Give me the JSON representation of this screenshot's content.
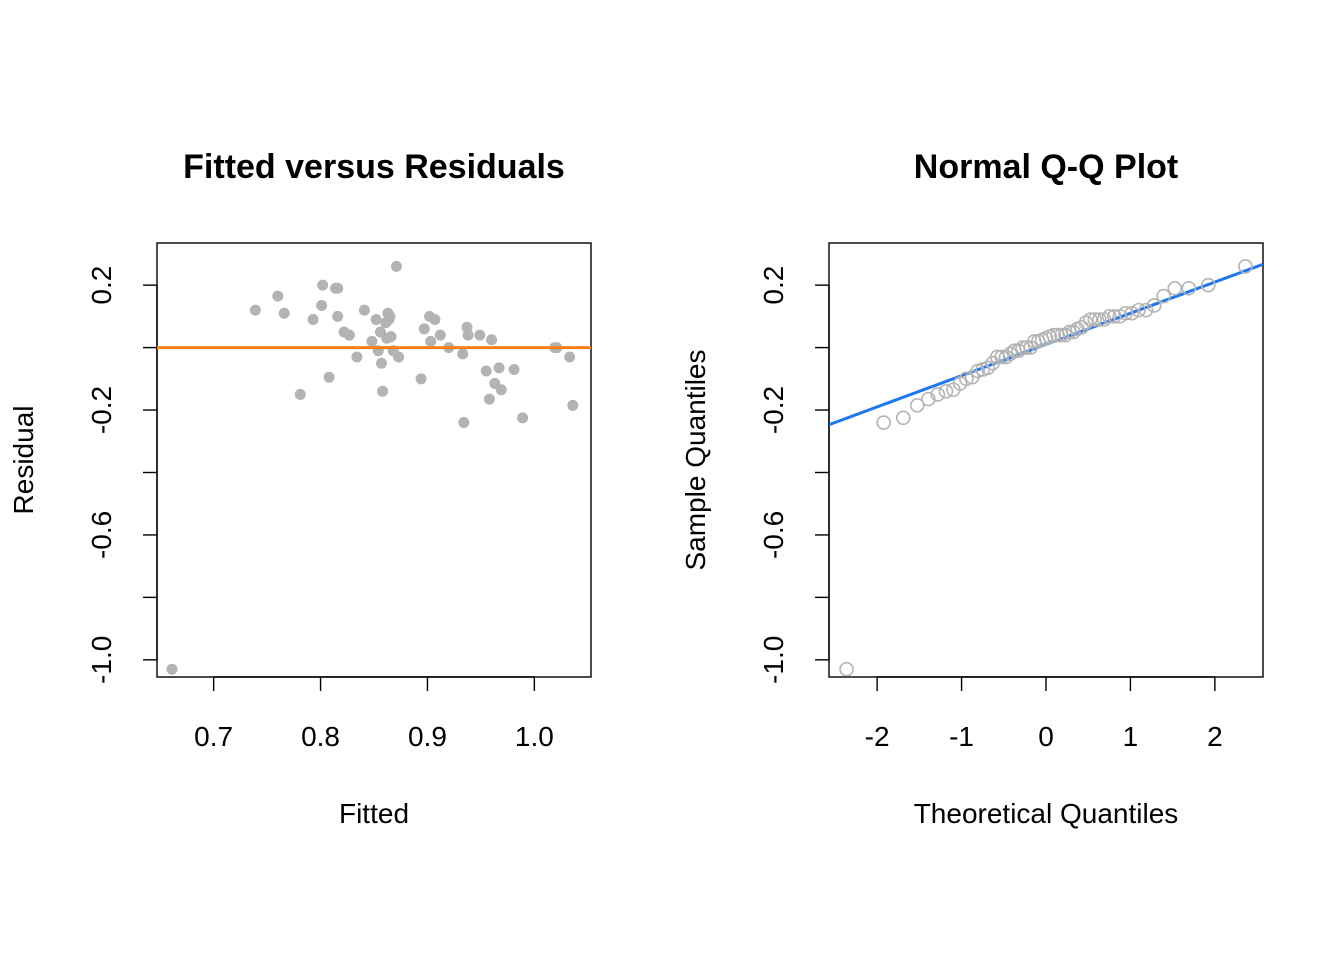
{
  "colors": {
    "points": "#B3B3B3",
    "ref_line_left": "#FF7F0E",
    "ref_line_right": "#1F77F0",
    "axis": "#000000"
  },
  "chart_data": [
    {
      "type": "scatter",
      "title": "Fitted versus Residuals",
      "xlabel": "Fitted",
      "ylabel": "Residual",
      "xlim": [
        0.647,
        1.053
      ],
      "ylim": [
        -1.055,
        0.335
      ],
      "xticks": [
        0.7,
        0.8,
        0.9,
        1.0
      ],
      "xtick_labels": [
        "0.7",
        "0.8",
        "0.9",
        "1.0"
      ],
      "yticks": [
        -1.0,
        -0.8,
        -0.6,
        -0.4,
        -0.2,
        0.0,
        0.2
      ],
      "ytick_labels": [
        "-1.0",
        "",
        "-0.6",
        "",
        "-0.2",
        "",
        "0.2"
      ],
      "point_style": "filled",
      "hline": 0,
      "x": [
        0.661,
        0.739,
        0.76,
        0.766,
        0.781,
        0.793,
        0.801,
        0.802,
        0.808,
        0.814,
        0.816,
        0.816,
        0.822,
        0.827,
        0.834,
        0.841,
        0.848,
        0.852,
        0.854,
        0.856,
        0.857,
        0.858,
        0.861,
        0.862,
        0.863,
        0.864,
        0.865,
        0.866,
        0.868,
        0.871,
        0.873,
        0.894,
        0.897,
        0.902,
        0.903,
        0.907,
        0.912,
        0.92,
        0.933,
        0.934,
        0.937,
        0.938,
        0.949,
        0.955,
        0.958,
        0.96,
        0.963,
        0.967,
        0.969,
        0.981,
        0.989,
        1.019,
        1.021,
        1.033,
        1.036
      ],
      "y": [
        -1.03,
        0.12,
        0.165,
        0.11,
        -0.15,
        0.09,
        0.135,
        0.2,
        -0.095,
        0.19,
        0.19,
        0.1,
        0.05,
        0.04,
        -0.03,
        0.12,
        0.02,
        0.09,
        -0.01,
        0.05,
        -0.05,
        -0.14,
        0.08,
        0.03,
        0.11,
        0.09,
        0.1,
        0.035,
        -0.01,
        0.26,
        -0.03,
        -0.1,
        0.06,
        0.1,
        0.02,
        0.09,
        0.04,
        0.0,
        -0.02,
        -0.24,
        0.065,
        0.04,
        0.04,
        -0.075,
        -0.165,
        0.025,
        -0.115,
        -0.065,
        -0.135,
        -0.07,
        -0.225,
        0.0,
        0.0,
        -0.03,
        -0.185
      ]
    },
    {
      "type": "scatter",
      "title": "Normal Q-Q Plot",
      "xlabel": "Theoretical Quantiles",
      "ylabel": "Sample Quantiles",
      "xlim": [
        -2.57,
        2.57
      ],
      "ylim": [
        -1.055,
        0.335
      ],
      "xticks": [
        -2,
        -1,
        0,
        1,
        2
      ],
      "xtick_labels": [
        "-2",
        "-1",
        "0",
        "1",
        "2"
      ],
      "yticks": [
        -1.0,
        -0.8,
        -0.6,
        -0.4,
        -0.2,
        0.0,
        0.2
      ],
      "ytick_labels": [
        "-1.0",
        "",
        "-0.6",
        "",
        "-0.2",
        "",
        "0.2"
      ],
      "point_style": "open",
      "qq_line": {
        "intercept": 0.01,
        "slope": 0.1
      }
    }
  ]
}
